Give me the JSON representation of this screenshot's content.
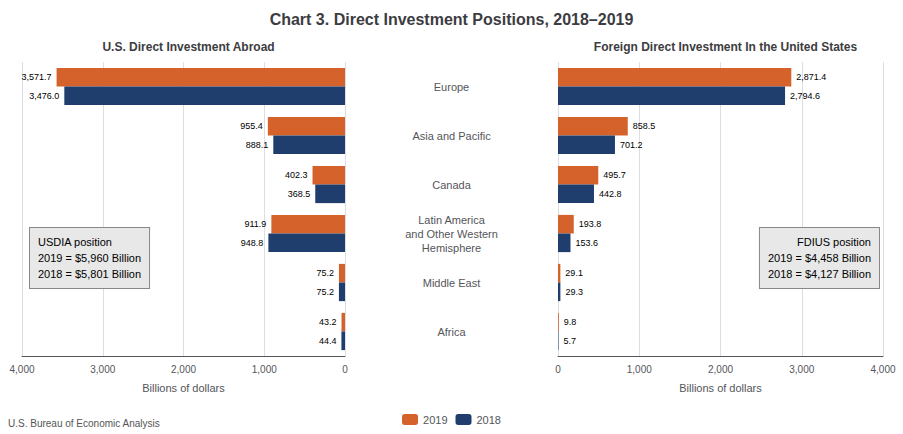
{
  "title": "Chart 3. Direct Investment Positions, 2018–2019",
  "annotations": [
    "U.S. Bureau of Economic Analysis"
  ],
  "chart_data": [
    {
      "type": "bar",
      "orientation": "horizontal",
      "title": "U.S. Direct Investment Abroad",
      "xlabel": "Billions of dollars",
      "categories": [
        "Europe",
        "Asia and Pacific",
        "Canada",
        "Latin America\nand Other Western\nHemisphere",
        "Middle East",
        "Africa"
      ],
      "series": [
        {
          "name": "2019",
          "color": "#D4622A",
          "values": [
            3571.7,
            955.4,
            402.3,
            911.9,
            75.2,
            43.2
          ],
          "value_labels": [
            "3,571.7",
            "955.4",
            "402.3",
            "911.9",
            "75.2",
            "43.2"
          ]
        },
        {
          "name": "2018",
          "color": "#1F3E6E",
          "values": [
            3476.0,
            888.1,
            368.5,
            948.8,
            75.2,
            44.4
          ],
          "value_labels": [
            "3,476.0",
            "888.1",
            "368.5",
            "948.8",
            "75.2",
            "44.4"
          ]
        }
      ],
      "xlim": [
        4000,
        0
      ],
      "xticks": [
        {
          "value": 4000,
          "label": "4,000"
        },
        {
          "value": 3000,
          "label": "3,000"
        },
        {
          "value": 2000,
          "label": "2,000"
        },
        {
          "value": 1000,
          "label": "1,000"
        },
        0
      ],
      "grid": true,
      "data_labels": true,
      "legend": "bottom",
      "annotations": [
        "USDIA position\n2019 = $5,960 Billion\n2018 = $5,801 Billion"
      ]
    },
    {
      "type": "bar",
      "orientation": "horizontal",
      "title": "Foreign Direct Investment In the United States",
      "xlabel": "Billions of dollars",
      "categories": [
        "Europe",
        "Asia and Pacific",
        "Canada",
        "Latin America\nand Other Western\nHemisphere",
        "Middle East",
        "Africa"
      ],
      "series": [
        {
          "name": "2019",
          "color": "#D4622A",
          "values": [
            2871.4,
            858.5,
            495.7,
            193.8,
            29.1,
            9.8
          ],
          "value_labels": [
            "2,871.4",
            "858.5",
            "495.7",
            "193.8",
            "29.1",
            "9.8"
          ]
        },
        {
          "name": "2018",
          "color": "#1F3E6E",
          "values": [
            2794.6,
            701.2,
            442.8,
            153.6,
            29.3,
            5.7
          ],
          "value_labels": [
            "2,794.6",
            "701.2",
            "442.8",
            "153.6",
            "29.3",
            "5.7"
          ]
        }
      ],
      "xlim": [
        0,
        4000
      ],
      "xticks": [
        0,
        {
          "value": 1000,
          "label": "1,000"
        },
        {
          "value": 2000,
          "label": "2,000"
        },
        {
          "value": 3000,
          "label": "3,000"
        },
        {
          "value": 4000,
          "label": "4,000"
        }
      ],
      "grid": true,
      "data_labels": true,
      "legend": "bottom",
      "annotations": [
        "FDIUS position\n2019 = $4,458 Billion\n2018 = $4,127 Billion"
      ]
    }
  ]
}
